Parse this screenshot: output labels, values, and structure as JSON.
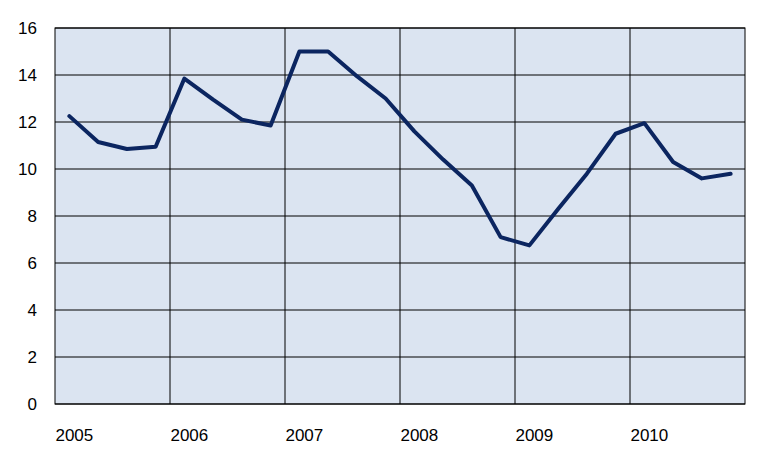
{
  "chart_data": {
    "type": "line",
    "categories": [
      "2005",
      null,
      null,
      null,
      "2006",
      null,
      null,
      null,
      "2007",
      null,
      null,
      null,
      "2008",
      null,
      null,
      null,
      "2009",
      null,
      null,
      null,
      "2010",
      null,
      null,
      null
    ],
    "values": [
      12.25,
      11.15,
      10.85,
      10.95,
      13.85,
      12.95,
      12.1,
      11.85,
      15.0,
      15.0,
      13.95,
      13.0,
      11.6,
      10.4,
      9.3,
      7.1,
      6.75,
      8.3,
      9.8,
      11.5,
      11.95,
      10.3,
      9.6,
      9.8
    ],
    "color": "#0b2560",
    "ylim": [
      0,
      16
    ],
    "yticks": [
      0,
      2,
      4,
      6,
      8,
      10,
      12,
      14,
      16
    ],
    "grid": true
  }
}
